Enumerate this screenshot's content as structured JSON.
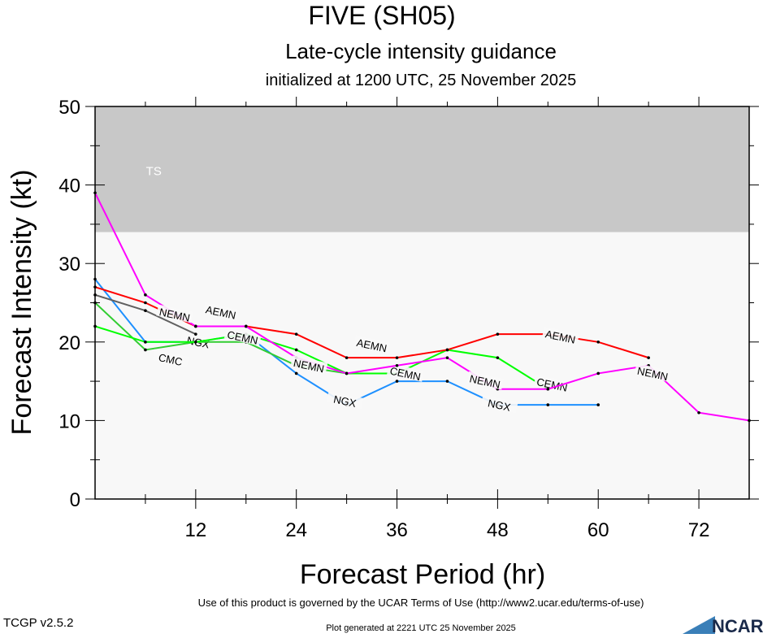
{
  "chart_data": {
    "type": "line",
    "title": "FIVE (SH05)",
    "subtitle": "Late-cycle intensity guidance",
    "subtitle2": "initialized at 1200 UTC, 25 November 2025",
    "xlabel": "Forecast Period (hr)",
    "ylabel": "Forecast Intensity (kt)",
    "xlim": [
      0,
      78
    ],
    "ylim": [
      0,
      50
    ],
    "xticks": [
      12,
      24,
      36,
      48,
      60,
      72
    ],
    "yticks": [
      0,
      10,
      20,
      30,
      40,
      50
    ],
    "band": {
      "label": "TS",
      "from": 34,
      "to": 50,
      "color": "#c8c8c8"
    },
    "background": "#f8f8f8",
    "series": [
      {
        "name": "NGX",
        "color": "#1e90ff",
        "x": [
          0,
          6,
          12,
          18,
          24,
          30,
          36,
          42,
          48,
          54,
          60
        ],
        "y": [
          28,
          20,
          20,
          21,
          16,
          12,
          15,
          15,
          12,
          12,
          12
        ]
      },
      {
        "name": "CMC",
        "color": "#32cd32",
        "x": [
          0,
          6,
          12,
          18,
          24,
          30
        ],
        "y": [
          25,
          19,
          20,
          20,
          17,
          16
        ]
      },
      {
        "name": "",
        "color": "#606060",
        "x": [
          0,
          6,
          12
        ],
        "y": [
          26,
          24,
          21
        ]
      },
      {
        "name": "CEMN",
        "color": "#00ff00",
        "x": [
          0,
          6,
          12,
          18,
          24,
          30,
          36,
          42,
          48,
          54
        ],
        "y": [
          22,
          20,
          20,
          21,
          19,
          16,
          16,
          19,
          18,
          14
        ]
      },
      {
        "name": "AEMN",
        "color": "#ff0000",
        "x": [
          0,
          6,
          12,
          18,
          24,
          30,
          36,
          42,
          48,
          54,
          60,
          66
        ],
        "y": [
          27,
          25,
          22,
          22,
          21,
          18,
          18,
          19,
          21,
          21,
          20,
          18
        ]
      },
      {
        "name": "NEMN",
        "color": "#ff00ff",
        "x": [
          0,
          6,
          12,
          18,
          24,
          30,
          36,
          42,
          48,
          54,
          60,
          66,
          72,
          78
        ],
        "y": [
          39,
          26,
          22,
          22,
          18,
          16,
          17,
          18,
          14,
          14,
          16,
          17,
          11,
          10
        ]
      }
    ]
  },
  "footer": {
    "version": "TCGP v2.5.2",
    "terms": "Use of this product is governed by the UCAR Terms of Use (http://www2.ucar.edu/terms-of-use)",
    "generated": "Plot generated at 2221 UTC   25 November 2025",
    "logo": "NCAR"
  }
}
